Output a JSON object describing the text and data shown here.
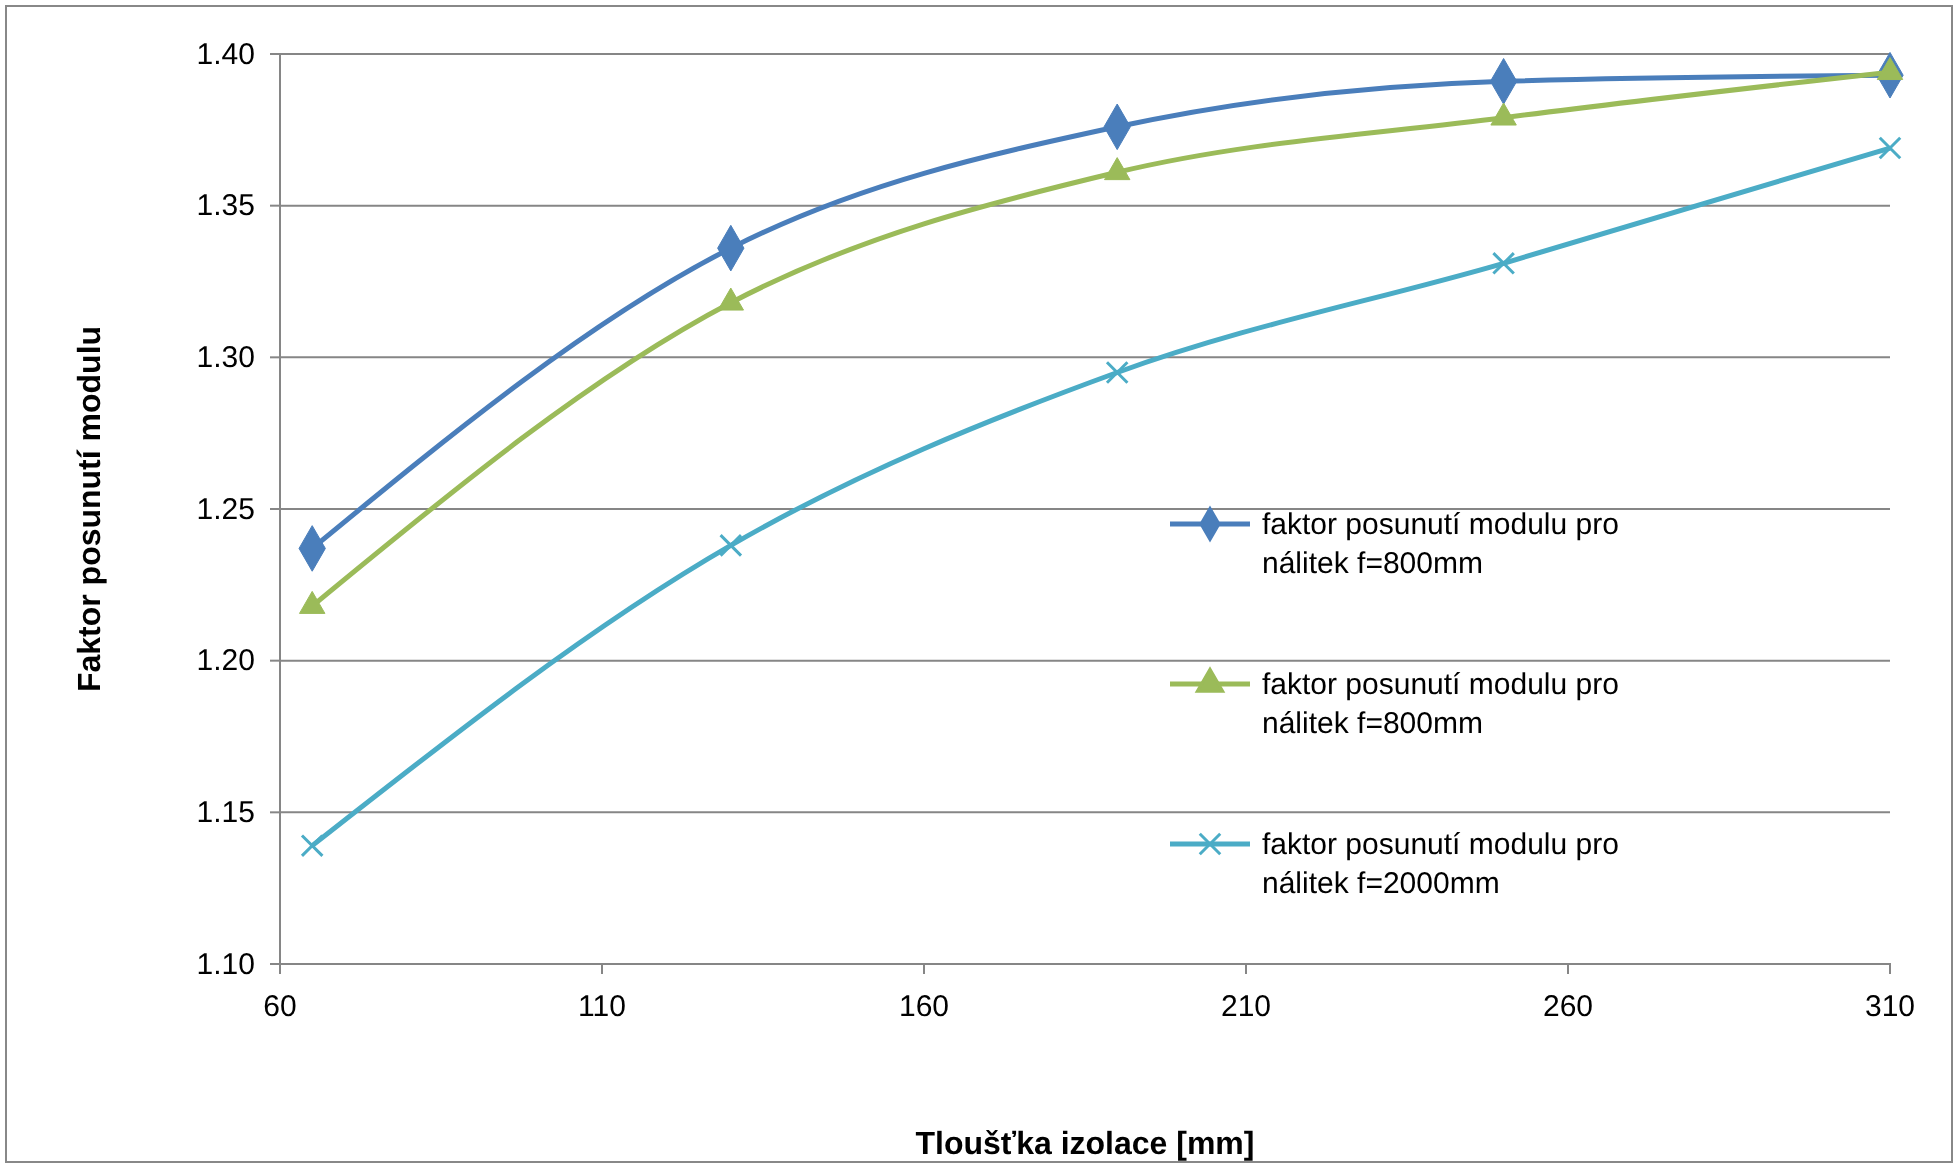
{
  "chart_data": {
    "type": "line",
    "xlabel": "Tloušťka  izolace [mm]",
    "ylabel": "Faktor posunutí modulu",
    "x": [
      65,
      130,
      190,
      250,
      310
    ],
    "series": [
      {
        "name": "faktor posunutí modulu pro nálitek f=800mm",
        "color": "#4a7ebb",
        "marker": "diamond",
        "values": [
          1.237,
          1.336,
          1.376,
          1.391,
          1.393
        ]
      },
      {
        "name": "faktor posunutí modulu pro nálitek f=800mm",
        "color": "#9bbb59",
        "marker": "triangle",
        "values": [
          1.218,
          1.318,
          1.361,
          1.379,
          1.394
        ]
      },
      {
        "name": "faktor posunutí modulu pro nálitek f=2000mm",
        "color": "#4bacc6",
        "marker": "cross",
        "values": [
          1.139,
          1.238,
          1.295,
          1.331,
          1.369
        ]
      }
    ],
    "xlim": [
      60,
      310
    ],
    "xticks": [
      {
        "value": 60,
        "label": "60"
      },
      110,
      160,
      210,
      260,
      310
    ],
    "ylim": [
      1.1,
      1.4
    ],
    "yticks": [
      {
        "value": 1.1,
        "label": "1.10"
      },
      {
        "value": 1.15,
        "label": "1.15"
      },
      {
        "value": 1.2,
        "label": "1.20"
      },
      {
        "value": 1.25,
        "label": "1.25"
      },
      {
        "value": 1.3,
        "label": "1.30"
      },
      {
        "value": 1.35,
        "label": "1.35"
      },
      {
        "value": 1.4,
        "label": "1.40"
      }
    ],
    "grid": "y",
    "legend": "right",
    "line_style": "solid"
  }
}
